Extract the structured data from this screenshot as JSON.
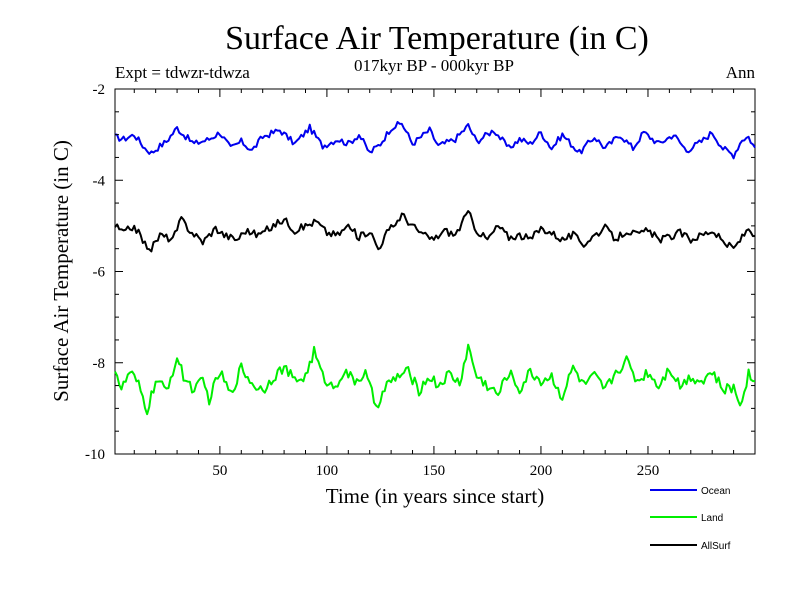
{
  "chart_data": {
    "type": "line",
    "title": "Surface Air Temperature (in C)",
    "subtitle": "017kyr BP - 000kyr BP",
    "experiment_label": "Expt = tdwzr-tdwza",
    "season_label": "Ann",
    "xlabel": "Time (in years since start)",
    "ylabel": "Surface Air Temperature (in C)",
    "xlim": [
      1,
      300
    ],
    "ylim": [
      -10,
      -2
    ],
    "xticks": [
      50,
      100,
      150,
      200,
      250
    ],
    "xtick_labels": [
      "50",
      "100",
      "150",
      "200",
      "250"
    ],
    "yticks": [
      -10,
      -8,
      -6,
      -4,
      -2
    ],
    "ytick_labels": [
      "-10",
      "-8",
      "-6",
      "-4",
      "-2"
    ],
    "y_minor_step": 0.5,
    "grid": false,
    "legend_position": "bottom-right",
    "series": [
      {
        "name": "Ocean",
        "color": "#0000ee",
        "anchors": [
          [
            1,
            -3.05
          ],
          [
            5,
            -3.1
          ],
          [
            10,
            -3.0
          ],
          [
            15,
            -3.3
          ],
          [
            18,
            -3.4
          ],
          [
            22,
            -3.25
          ],
          [
            25,
            -3.15
          ],
          [
            30,
            -2.85
          ],
          [
            33,
            -3.0
          ],
          [
            38,
            -3.2
          ],
          [
            45,
            -3.1
          ],
          [
            50,
            -2.95
          ],
          [
            55,
            -3.3
          ],
          [
            60,
            -3.15
          ],
          [
            65,
            -3.35
          ],
          [
            70,
            -3.05
          ],
          [
            78,
            -2.9
          ],
          [
            85,
            -3.2
          ],
          [
            92,
            -2.85
          ],
          [
            98,
            -3.25
          ],
          [
            105,
            -3.1
          ],
          [
            110,
            -3.2
          ],
          [
            115,
            -3.0
          ],
          [
            120,
            -3.4
          ],
          [
            125,
            -3.2
          ],
          [
            130,
            -2.85
          ],
          [
            135,
            -2.75
          ],
          [
            140,
            -3.2
          ],
          [
            148,
            -2.9
          ],
          [
            152,
            -3.25
          ],
          [
            160,
            -3.1
          ],
          [
            166,
            -2.8
          ],
          [
            170,
            -3.15
          ],
          [
            178,
            -2.9
          ],
          [
            185,
            -3.3
          ],
          [
            190,
            -3.1
          ],
          [
            195,
            -3.2
          ],
          [
            200,
            -2.95
          ],
          [
            205,
            -3.3
          ],
          [
            210,
            -3.0
          ],
          [
            218,
            -3.4
          ],
          [
            225,
            -3.05
          ],
          [
            230,
            -3.3
          ],
          [
            237,
            -3.0
          ],
          [
            243,
            -3.3
          ],
          [
            248,
            -2.95
          ],
          [
            255,
            -3.2
          ],
          [
            262,
            -3.0
          ],
          [
            268,
            -3.35
          ],
          [
            275,
            -3.15
          ],
          [
            280,
            -2.95
          ],
          [
            285,
            -3.3
          ],
          [
            290,
            -3.45
          ],
          [
            294,
            -3.1
          ],
          [
            297,
            -3.05
          ],
          [
            300,
            -3.3
          ]
        ],
        "noise": 0.07
      },
      {
        "name": "Land",
        "color": "#00ee00",
        "anchors": [
          [
            1,
            -8.1
          ],
          [
            4,
            -8.6
          ],
          [
            8,
            -8.2
          ],
          [
            12,
            -8.5
          ],
          [
            16,
            -9.05
          ],
          [
            20,
            -8.4
          ],
          [
            25,
            -8.6
          ],
          [
            30,
            -7.9
          ],
          [
            33,
            -8.3
          ],
          [
            38,
            -8.6
          ],
          [
            42,
            -8.4
          ],
          [
            45,
            -8.8
          ],
          [
            50,
            -8.2
          ],
          [
            55,
            -8.7
          ],
          [
            60,
            -8.1
          ],
          [
            65,
            -8.45
          ],
          [
            70,
            -8.6
          ],
          [
            75,
            -8.3
          ],
          [
            80,
            -8.1
          ],
          [
            85,
            -8.4
          ],
          [
            90,
            -8.3
          ],
          [
            94,
            -7.75
          ],
          [
            98,
            -8.3
          ],
          [
            103,
            -8.55
          ],
          [
            108,
            -8.2
          ],
          [
            113,
            -8.4
          ],
          [
            118,
            -8.25
          ],
          [
            123,
            -8.95
          ],
          [
            128,
            -8.5
          ],
          [
            133,
            -8.3
          ],
          [
            138,
            -8.2
          ],
          [
            143,
            -8.6
          ],
          [
            148,
            -8.3
          ],
          [
            152,
            -8.5
          ],
          [
            157,
            -8.25
          ],
          [
            162,
            -8.45
          ],
          [
            166,
            -7.65
          ],
          [
            170,
            -8.3
          ],
          [
            175,
            -8.5
          ],
          [
            180,
            -8.7
          ],
          [
            185,
            -8.2
          ],
          [
            190,
            -8.6
          ],
          [
            195,
            -8.2
          ],
          [
            200,
            -8.4
          ],
          [
            205,
            -8.3
          ],
          [
            210,
            -8.75
          ],
          [
            215,
            -8.1
          ],
          [
            220,
            -8.5
          ],
          [
            225,
            -8.3
          ],
          [
            230,
            -8.6
          ],
          [
            235,
            -8.2
          ],
          [
            240,
            -7.95
          ],
          [
            245,
            -8.4
          ],
          [
            250,
            -8.2
          ],
          [
            255,
            -8.5
          ],
          [
            260,
            -8.1
          ],
          [
            265,
            -8.5
          ],
          [
            270,
            -8.3
          ],
          [
            275,
            -8.4
          ],
          [
            280,
            -8.2
          ],
          [
            285,
            -8.6
          ],
          [
            290,
            -8.55
          ],
          [
            293,
            -8.9
          ],
          [
            297,
            -8.25
          ],
          [
            300,
            -8.4
          ]
        ],
        "noise": 0.12
      },
      {
        "name": "AllSurf",
        "color": "#000000",
        "anchors": [
          [
            1,
            -5.0
          ],
          [
            5,
            -5.15
          ],
          [
            10,
            -5.0
          ],
          [
            15,
            -5.4
          ],
          [
            18,
            -5.5
          ],
          [
            22,
            -5.2
          ],
          [
            28,
            -5.3
          ],
          [
            32,
            -4.85
          ],
          [
            36,
            -5.1
          ],
          [
            42,
            -5.35
          ],
          [
            48,
            -5.05
          ],
          [
            52,
            -5.2
          ],
          [
            58,
            -5.3
          ],
          [
            62,
            -5.1
          ],
          [
            68,
            -5.2
          ],
          [
            75,
            -5.0
          ],
          [
            80,
            -4.85
          ],
          [
            85,
            -5.1
          ],
          [
            90,
            -5.0
          ],
          [
            95,
            -4.9
          ],
          [
            100,
            -5.15
          ],
          [
            105,
            -5.2
          ],
          [
            110,
            -5.0
          ],
          [
            115,
            -5.25
          ],
          [
            120,
            -5.1
          ],
          [
            124,
            -5.5
          ],
          [
            128,
            -5.15
          ],
          [
            132,
            -4.95
          ],
          [
            135,
            -4.75
          ],
          [
            140,
            -5.0
          ],
          [
            145,
            -5.2
          ],
          [
            150,
            -5.3
          ],
          [
            155,
            -5.1
          ],
          [
            160,
            -5.2
          ],
          [
            166,
            -4.7
          ],
          [
            170,
            -5.1
          ],
          [
            175,
            -5.3
          ],
          [
            180,
            -5.0
          ],
          [
            185,
            -5.25
          ],
          [
            190,
            -5.2
          ],
          [
            195,
            -5.3
          ],
          [
            200,
            -5.05
          ],
          [
            205,
            -5.15
          ],
          [
            210,
            -5.3
          ],
          [
            215,
            -5.2
          ],
          [
            220,
            -5.4
          ],
          [
            225,
            -5.2
          ],
          [
            230,
            -5.05
          ],
          [
            235,
            -5.3
          ],
          [
            240,
            -5.1
          ],
          [
            245,
            -5.2
          ],
          [
            250,
            -5.1
          ],
          [
            255,
            -5.3
          ],
          [
            260,
            -5.25
          ],
          [
            265,
            -5.15
          ],
          [
            270,
            -5.3
          ],
          [
            275,
            -5.2
          ],
          [
            280,
            -5.1
          ],
          [
            285,
            -5.35
          ],
          [
            290,
            -5.5
          ],
          [
            294,
            -5.25
          ],
          [
            297,
            -5.05
          ],
          [
            300,
            -5.2
          ]
        ],
        "noise": 0.08
      }
    ]
  }
}
